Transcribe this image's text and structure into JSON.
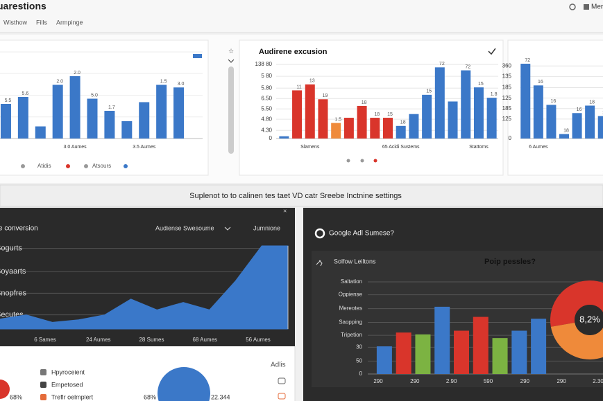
{
  "header": {
    "title": "uarestions",
    "menu": "Mer",
    "tabs": [
      "Wisthow",
      "Fills",
      "Armpinge"
    ]
  },
  "banner": "Suplenot to to calinen tes taet VD catr Sreebe Inctnine settings",
  "chart_data": [
    {
      "type": "bar",
      "color": "#3b78c8",
      "categories": [
        null,
        null,
        null,
        null,
        "3.0 Aumes",
        null,
        null,
        null,
        "3.5 Aumes",
        null,
        null
      ],
      "values": [
        40,
        48,
        14,
        62,
        72,
        46,
        32,
        20,
        42,
        62,
        59
      ],
      "notes": [
        "5.5",
        "5.6",
        null,
        "2.0",
        "2.0",
        "5.0",
        "1.7",
        null,
        null,
        "1.5",
        "3.0"
      ],
      "ylim": [
        0,
        100
      ],
      "legend": [
        "Atidis",
        "Atsours"
      ]
    },
    {
      "type": "bar",
      "title": "Audirene excusion",
      "categories": [
        null,
        null,
        "Slamens",
        null,
        null,
        null,
        null,
        null,
        null,
        "65 Acidi Sustems",
        null,
        null,
        null,
        null,
        null,
        "Stattoms",
        null
      ],
      "values": [
        3,
        65,
        73,
        53,
        21,
        28,
        44,
        28,
        28,
        17,
        33,
        59,
        96,
        50,
        92,
        69,
        55
      ],
      "colors": [
        "#3b78c8",
        "#d9352b",
        "#d9352b",
        "#d9352b",
        "#ef8a3a",
        "#d9352b",
        "#d9352b",
        "#d9352b",
        "#d9352b",
        "#3b78c8",
        "#3b78c8",
        "#3b78c8",
        "#3b78c8",
        "#3b78c8",
        "#3b78c8",
        "#3b78c8",
        "#3b78c8"
      ],
      "notes": [
        null,
        "11",
        "13",
        "19",
        "1.5",
        null,
        "18",
        "18",
        "15",
        "18",
        null,
        "15",
        "72",
        null,
        "72",
        "15",
        "1.8"
      ],
      "ylim": [
        0,
        100
      ],
      "yticks": [
        {
          "value": 100,
          "label": "138 80"
        },
        {
          "value": 84,
          "label": "5 80"
        },
        {
          "value": 68,
          "label": "5.80"
        },
        {
          "value": 54,
          "label": "6.50"
        },
        {
          "value": 40,
          "label": "5.50"
        },
        {
          "value": 26,
          "label": "4.80"
        },
        {
          "value": 11,
          "label": "4.30"
        },
        0
      ]
    },
    {
      "type": "bar",
      "color": "#3b78c8",
      "categories": [
        null,
        "6 Aumes",
        null,
        null,
        null,
        null,
        null
      ],
      "values": [
        100,
        71,
        45,
        6,
        34,
        44,
        30
      ],
      "notes": [
        "72",
        "16",
        "16",
        "18",
        "16",
        "18",
        "15"
      ],
      "ylim": [
        0,
        100
      ],
      "yticks": [
        {
          "value": 97,
          "label": "360"
        },
        {
          "value": 83,
          "label": "135"
        },
        {
          "value": 68,
          "label": "185"
        },
        {
          "value": 54,
          "label": "125"
        },
        {
          "value": 40,
          "label": "185"
        },
        {
          "value": 26,
          "label": "125"
        },
        0
      ]
    },
    {
      "type": "area",
      "title": "e conversion",
      "controls": [
        "Audiense Swesoume",
        "Jumnione"
      ],
      "color": "#3a78c9",
      "values": [
        12,
        17,
        8,
        11,
        17,
        36,
        23,
        32,
        23,
        58,
        100,
        100
      ],
      "ylim": [
        0,
        100
      ],
      "yticks": [
        {
          "value": 97,
          "label": "Sogurts"
        },
        {
          "value": 69,
          "label": "Soyaarts"
        },
        {
          "value": 43,
          "label": "Snopfres"
        },
        {
          "value": 17,
          "label": "Secutes"
        }
      ],
      "x_labels": [
        "6 Sames",
        "24 Aumes",
        "28 Sumes",
        "68 Aumes",
        "56 Aumes"
      ]
    },
    {
      "type": "bar",
      "title": "Google Adl Sumese?",
      "subtitle": "Solfow Leiltons",
      "values": [
        30,
        45,
        43,
        73,
        47,
        62,
        39,
        47,
        60
      ],
      "colors": [
        "#3b78c8",
        "#d9352b",
        "#7cb342",
        "#3b78c8",
        "#d9352b",
        "#d9352b",
        "#7cb342",
        "#3b78c8",
        "#3b78c8"
      ],
      "ylim": [
        0,
        100
      ],
      "yticks": [
        {
          "value": 100,
          "label": "Saltation"
        },
        {
          "value": 86,
          "label": "Oppiense"
        },
        {
          "value": 71,
          "label": "Mereotes"
        },
        {
          "value": 56,
          "label": "Saopping"
        },
        {
          "value": 42,
          "label": "Tripetion"
        },
        {
          "value": 29,
          "label": "30"
        },
        {
          "value": 14,
          "label": "50"
        },
        0
      ],
      "x_labels": [
        "290",
        "290",
        "2.90",
        "590",
        "290",
        "290",
        "2.30"
      ]
    },
    {
      "type": "pie",
      "title": "Poip pessles?",
      "center_label": "8,2%",
      "values": [
        55,
        45
      ],
      "colors": [
        "#d9352b",
        "#ef8a3a"
      ]
    }
  ],
  "summary": {
    "items": [
      "Hpyroceient",
      "Empetosed",
      "Treflr oelmplert"
    ],
    "stats": [
      "68%",
      "68%",
      "22.344"
    ],
    "link": "Adlis"
  }
}
